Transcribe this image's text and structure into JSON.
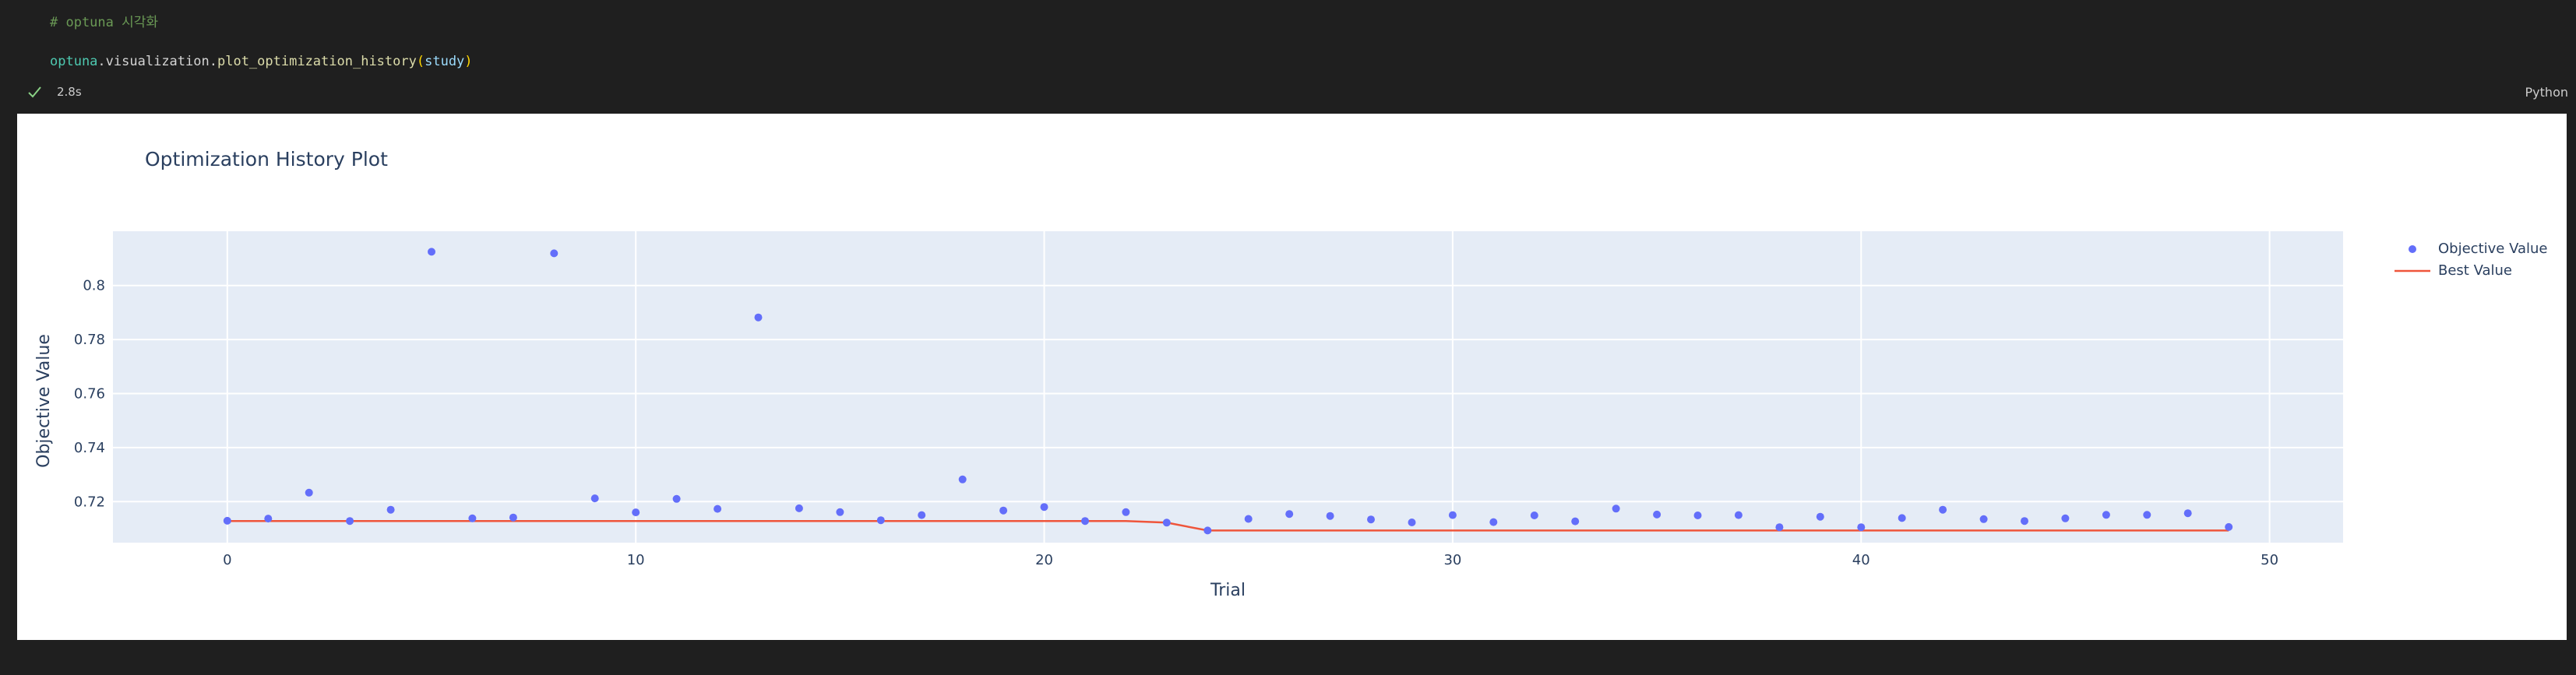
{
  "cell": {
    "comment": "# optuna 시각화",
    "code": {
      "module": "optuna",
      "dot1": ".",
      "attr": "visualization",
      "dot2": ".",
      "func": "plot_optimization_history",
      "open_paren": "(",
      "arg": "study",
      "close_paren": ")"
    },
    "status": {
      "icon": "check-icon",
      "exec_time": "2.8s",
      "language": "Python"
    }
  },
  "output": {
    "chart_data": {
      "type": "scatter",
      "title": "Optimization History Plot",
      "xlabel": "Trial",
      "ylabel": "Objective Value",
      "xlim": [
        -2.8,
        51.8
      ],
      "ylim": [
        0.7048,
        0.8201
      ],
      "x_ticks": [
        "0",
        "10",
        "20",
        "30",
        "40",
        "50"
      ],
      "y_ticks": [
        "0.72",
        "0.74",
        "0.76",
        "0.78",
        "0.8"
      ],
      "grid": true,
      "legend_position": "top-right",
      "series": [
        {
          "name": "Objective Value",
          "type": "scatter",
          "color": "#636efa",
          "x": [
            0,
            1,
            2,
            3,
            4,
            5,
            6,
            7,
            8,
            9,
            10,
            11,
            12,
            13,
            14,
            15,
            16,
            17,
            18,
            19,
            20,
            21,
            22,
            23,
            24,
            25,
            26,
            27,
            28,
            29,
            30,
            31,
            32,
            33,
            34,
            35,
            36,
            37,
            38,
            39,
            40,
            41,
            42,
            43,
            44,
            45,
            46,
            47,
            48,
            49
          ],
          "y": [
            0.7129,
            0.7137,
            0.7233,
            0.7128,
            0.717,
            0.8125,
            0.7138,
            0.7141,
            0.8119,
            0.7212,
            0.716,
            0.721,
            0.7173,
            0.7882,
            0.7175,
            0.7161,
            0.7131,
            0.715,
            0.7282,
            0.7167,
            0.718,
            0.7128,
            0.7161,
            0.7122,
            0.7093,
            0.7136,
            0.7154,
            0.7147,
            0.7134,
            0.7123,
            0.715,
            0.7124,
            0.7149,
            0.7127,
            0.7174,
            0.7152,
            0.7149,
            0.715,
            0.7105,
            0.7144,
            0.7105,
            0.7139,
            0.717,
            0.7135,
            0.7128,
            0.7138,
            0.7151,
            0.7151,
            0.7157,
            0.7106
          ]
        },
        {
          "name": "Best Value",
          "type": "line",
          "color": "#ef553b",
          "x": [
            0,
            22,
            23,
            24,
            49
          ],
          "y": [
            0.7128,
            0.7128,
            0.7122,
            0.7093,
            0.7093
          ]
        }
      ]
    }
  }
}
